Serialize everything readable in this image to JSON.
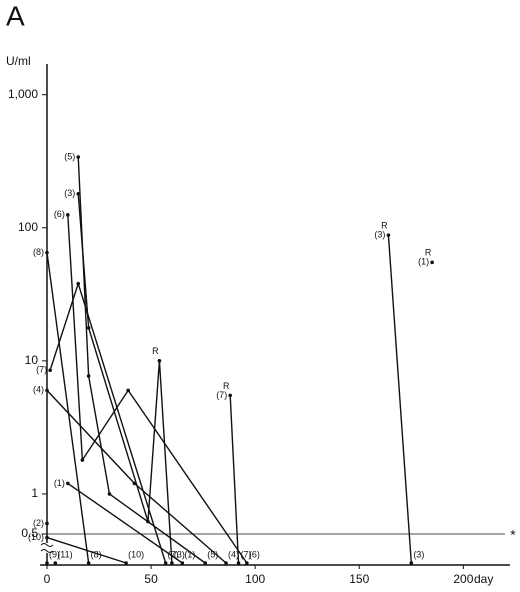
{
  "chart_data": {
    "type": "line",
    "panel": "A",
    "y_label": "U/ml",
    "x_label": "day",
    "log_y": true,
    "ylim": [
      0.5,
      1700
    ],
    "xlim": [
      0,
      220
    ],
    "yticks": [
      {
        "value": 1000,
        "label": "1,000"
      },
      100,
      10,
      1,
      0.5
    ],
    "xticks": [
      0,
      50,
      100,
      150,
      200
    ],
    "threshold": 0.5,
    "threshold_label": "*",
    "color": "#111111",
    "series": [
      {
        "name": "(5)",
        "x": [
          15,
          20,
          30,
          76
        ],
        "values": [
          340,
          7.7,
          1.0,
          0
        ],
        "point_labels": [
          null,
          null,
          null,
          null
        ]
      },
      {
        "name": "(3)",
        "x": [
          15,
          20,
          48.5,
          54,
          60,
          120,
          164,
          175
        ],
        "values": [
          180,
          17.7,
          0.62,
          10,
          0,
          null,
          88,
          0
        ],
        "point_labels": [
          null,
          null,
          null,
          "R",
          null,
          null,
          "R",
          null
        ]
      },
      {
        "name": "(6)",
        "x": [
          10,
          17,
          39,
          96
        ],
        "values": [
          125,
          1.8,
          6,
          0
        ],
        "point_labels": [
          null,
          null,
          null,
          null
        ]
      },
      {
        "name": "(8)",
        "x": [
          0,
          20
        ],
        "values": [
          65,
          0
        ],
        "point_labels": [
          null,
          null
        ]
      },
      {
        "name": "(4)",
        "x": [
          0,
          42,
          86
        ],
        "values": [
          6,
          1.2,
          0
        ],
        "point_labels": [
          null,
          null,
          null
        ]
      },
      {
        "name": "(1)",
        "x": [
          10,
          65,
          120,
          185
        ],
        "values": [
          1.2,
          0,
          null,
          55
        ],
        "point_labels": [
          null,
          null,
          null,
          "R"
        ]
      },
      {
        "name": "(7)",
        "x": [
          1.5,
          15,
          57,
          70,
          88,
          92
        ],
        "values": [
          8.5,
          38,
          0,
          null,
          5.5,
          0
        ],
        "point_labels": [
          null,
          null,
          null,
          null,
          "R",
          null
        ]
      },
      {
        "name": "(2)",
        "x": [
          0
        ],
        "values": [
          0.6
        ],
        "point_labels": [
          null
        ]
      },
      {
        "name": "(10)",
        "x": [
          0,
          38
        ],
        "values": [
          0.47,
          0
        ],
        "point_labels": [
          null,
          null
        ]
      },
      {
        "name": "(9)",
        "x": [
          0
        ],
        "values": [
          0
        ],
        "point_labels": [
          null
        ]
      },
      {
        "name": "(11)",
        "x": [
          4
        ],
        "values": [
          0
        ],
        "point_labels": [
          null
        ]
      }
    ]
  }
}
